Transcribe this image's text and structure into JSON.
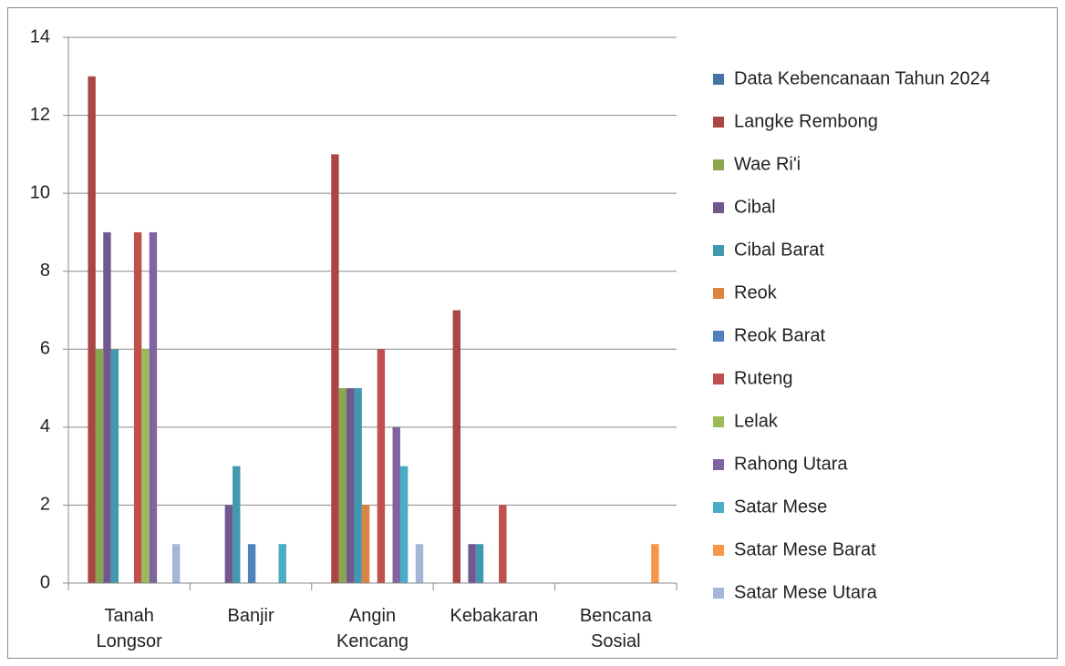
{
  "chart_data": {
    "type": "bar",
    "categories": [
      "Tanah Longsor",
      "Banjir",
      "Angin Kencang",
      "Kebakaran",
      "Bencana Sosial"
    ],
    "series": [
      {
        "name": "Data Kebencanaan Tahun 2024",
        "color": "#4572a7",
        "values": [
          0,
          0,
          0,
          0,
          0
        ]
      },
      {
        "name": "Langke Rembong",
        "color": "#aa4643",
        "values": [
          13,
          0,
          11,
          7,
          0
        ]
      },
      {
        "name": "Wae Ri'i",
        "color": "#89a54e",
        "values": [
          6,
          0,
          5,
          0,
          0
        ]
      },
      {
        "name": "Cibal",
        "color": "#71588f",
        "values": [
          9,
          2,
          5,
          1,
          0
        ]
      },
      {
        "name": "Cibal Barat",
        "color": "#4198af",
        "values": [
          6,
          3,
          5,
          1,
          0
        ]
      },
      {
        "name": "Reok",
        "color": "#db843d",
        "values": [
          0,
          0,
          2,
          0,
          0
        ]
      },
      {
        "name": "Reok Barat",
        "color": "#4f81bd",
        "values": [
          0,
          1,
          0,
          0,
          0
        ]
      },
      {
        "name": "Ruteng",
        "color": "#c0504d",
        "values": [
          9,
          0,
          6,
          2,
          0
        ]
      },
      {
        "name": "Lelak",
        "color": "#9bbb59",
        "values": [
          6,
          0,
          0,
          0,
          0
        ]
      },
      {
        "name": "Rahong Utara",
        "color": "#8064a2",
        "values": [
          9,
          0,
          4,
          0,
          0
        ]
      },
      {
        "name": "Satar Mese",
        "color": "#4bacc6",
        "values": [
          0,
          1,
          3,
          0,
          0
        ]
      },
      {
        "name": "Satar Mese Barat",
        "color": "#f79646",
        "values": [
          0,
          0,
          0,
          0,
          1
        ]
      },
      {
        "name": "Satar Mese Utara",
        "color": "#a5b6d9",
        "values": [
          1,
          0,
          1,
          0,
          0
        ]
      }
    ],
    "ylim": [
      0,
      14
    ],
    "yticks": [
      0,
      2,
      4,
      6,
      8,
      10,
      12,
      14
    ],
    "grid": true,
    "legend": "right"
  }
}
